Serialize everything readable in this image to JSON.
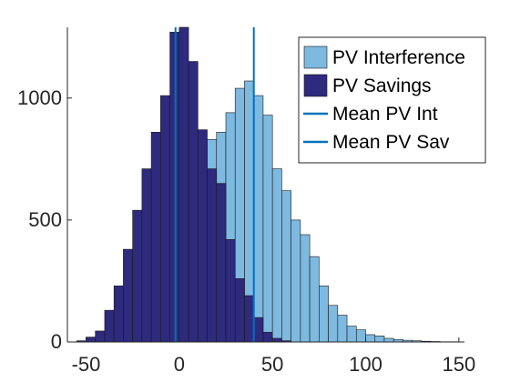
{
  "chart_data": {
    "type": "histogram",
    "title": "",
    "xlabel": "",
    "ylabel": "",
    "xlim": [
      -60,
      153
    ],
    "ylim": [
      0,
      1290
    ],
    "bin_width": 5,
    "grid": false,
    "legend_position": "top-right",
    "x_ticks": [
      -50,
      0,
      50,
      100,
      150
    ],
    "x_tick_labels": [
      "-50",
      "0",
      "50",
      "100",
      "150"
    ],
    "y_ticks": [
      0,
      500,
      1000
    ],
    "y_tick_labels": [
      "0",
      "500",
      "1000"
    ],
    "series": [
      {
        "name": "PV Interference",
        "kind": "histogram",
        "color": "#7EB9E0",
        "bin_starts": [
          15,
          20,
          25,
          30,
          35,
          40,
          45,
          50,
          55,
          60,
          65,
          70,
          75,
          80,
          85,
          90,
          95,
          100,
          105,
          110,
          115,
          120,
          125,
          130,
          135,
          140,
          145
        ],
        "counts": [
          830,
          860,
          940,
          1040,
          1070,
          1010,
          930,
          710,
          620,
          500,
          440,
          350,
          230,
          150,
          110,
          65,
          50,
          30,
          25,
          15,
          10,
          7,
          5,
          3,
          2,
          1,
          1
        ]
      },
      {
        "name": "PV Savings",
        "kind": "histogram",
        "color": "#2E2A7E",
        "bin_starts": [
          -55,
          -50,
          -45,
          -40,
          -35,
          -30,
          -25,
          -20,
          -15,
          -10,
          -5,
          0,
          5,
          10,
          15,
          20,
          25,
          30,
          35,
          40,
          45,
          50,
          55
        ],
        "counts": [
          5,
          20,
          45,
          130,
          230,
          380,
          540,
          710,
          860,
          1010,
          1270,
          1290,
          1150,
          870,
          710,
          650,
          420,
          260,
          190,
          100,
          40,
          15,
          5
        ]
      },
      {
        "name": "Mean PV Int",
        "kind": "vertical_line",
        "color": "#0072BD",
        "x": 40
      },
      {
        "name": "Mean PV Sav",
        "kind": "vertical_line",
        "color": "#0072BD",
        "x": -2
      }
    ]
  }
}
